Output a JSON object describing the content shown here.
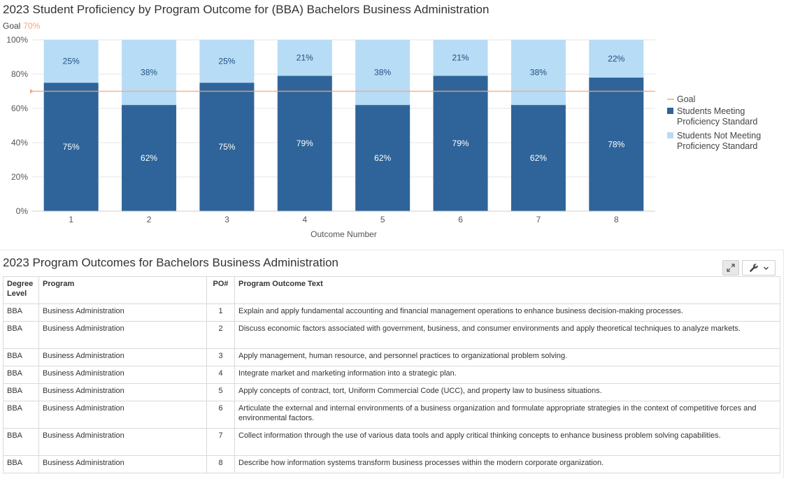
{
  "chart": {
    "title": "2023 Student Proficiency by Program Outcome for (BBA) Bachelors Business Administration",
    "goal_label": "Goal",
    "goal_value_text": "70%"
  },
  "chart_data": {
    "type": "bar",
    "stacked": true,
    "categories": [
      "1",
      "2",
      "3",
      "4",
      "5",
      "6",
      "7",
      "8"
    ],
    "series": [
      {
        "name": "Students Meeting Proficiency Standard",
        "values": [
          75,
          62,
          75,
          79,
          62,
          79,
          62,
          78
        ],
        "color": "#2e6499",
        "label_color": "#ffffff"
      },
      {
        "name": "Students Not Meeting Proficiency Standard",
        "values": [
          25,
          38,
          25,
          21,
          38,
          21,
          38,
          22
        ],
        "color": "#b7dcf5",
        "label_color": "#1f4f82"
      }
    ],
    "goal": {
      "name": "Goal",
      "value": 70,
      "color": "#f4a582"
    },
    "xlabel": "Outcome Number",
    "ylabel": "",
    "ylim": [
      0,
      100
    ],
    "yticks": [
      "0%",
      "20%",
      "40%",
      "60%",
      "80%",
      "100%"
    ],
    "legend_position": "right",
    "grid": true
  },
  "table": {
    "title": "2023 Program Outcomes for Bachelors Business Administration",
    "headers": {
      "degree": "Degree Level",
      "program": "Program",
      "po": "PO#",
      "text": "Program Outcome Text"
    },
    "rows": [
      {
        "degree": "BBA",
        "program": "Business Administration",
        "po": "1",
        "text": "Explain and apply fundamental accounting and financial management operations to enhance business decision-making processes."
      },
      {
        "degree": "BBA",
        "program": "Business Administration",
        "po": "2",
        "text": "Discuss economic factors associated with government, business, and consumer environments and apply theoretical techniques to analyze markets."
      },
      {
        "degree": "BBA",
        "program": "Business Administration",
        "po": "3",
        "text": "Apply management, human resource, and personnel practices to organizational problem solving."
      },
      {
        "degree": "BBA",
        "program": "Business Administration",
        "po": "4",
        "text": "Integrate market and marketing information into a strategic plan."
      },
      {
        "degree": "BBA",
        "program": "Business Administration",
        "po": "5",
        "text": "Apply concepts of contract, tort, Uniform Commercial Code (UCC), and property law to business situations."
      },
      {
        "degree": "BBA",
        "program": "Business Administration",
        "po": "6",
        "text": "Articulate the external and internal environments of a business organization and formulate appropriate strategies in the context of competitive forces and environmental factors."
      },
      {
        "degree": "BBA",
        "program": "Business Administration",
        "po": "7",
        "text": "Collect information through the use of various data tools and apply critical thinking concepts to enhance business problem solving capabilities."
      },
      {
        "degree": "BBA",
        "program": "Business Administration",
        "po": "8",
        "text": "Describe how information systems transform business processes within the modern corporate organization."
      }
    ]
  },
  "toolbar": {
    "expand_icon": "expand-icon",
    "wrench_icon": "wrench-icon",
    "chevron_icon": "chevron-down-icon"
  }
}
